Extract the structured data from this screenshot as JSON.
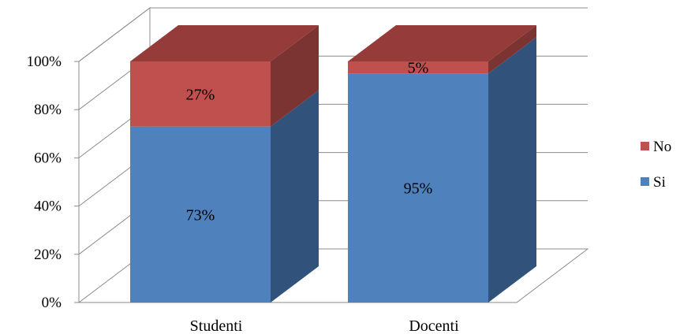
{
  "chart_data": {
    "type": "bar",
    "stacked": true,
    "three_d": true,
    "categories": [
      "Studenti",
      "Docenti"
    ],
    "series": [
      {
        "name": "Si",
        "values": [
          73,
          95
        ],
        "color": "#4f81bd",
        "side_color": "#31527b",
        "top_color": "#6d97cc"
      },
      {
        "name": "No",
        "values": [
          27,
          5
        ],
        "color": "#c0504d",
        "side_color": "#7b3431",
        "top_color": "#953b39"
      }
    ],
    "data_labels": [
      [
        "73%",
        "95%"
      ],
      [
        "27%",
        "5%"
      ]
    ],
    "y_ticks": [
      "0%",
      "20%",
      "40%",
      "60%",
      "80%",
      "100%"
    ],
    "ylim": [
      0,
      100
    ],
    "grid": true,
    "legend": "right",
    "title": "",
    "xlabel": "",
    "ylabel": ""
  }
}
